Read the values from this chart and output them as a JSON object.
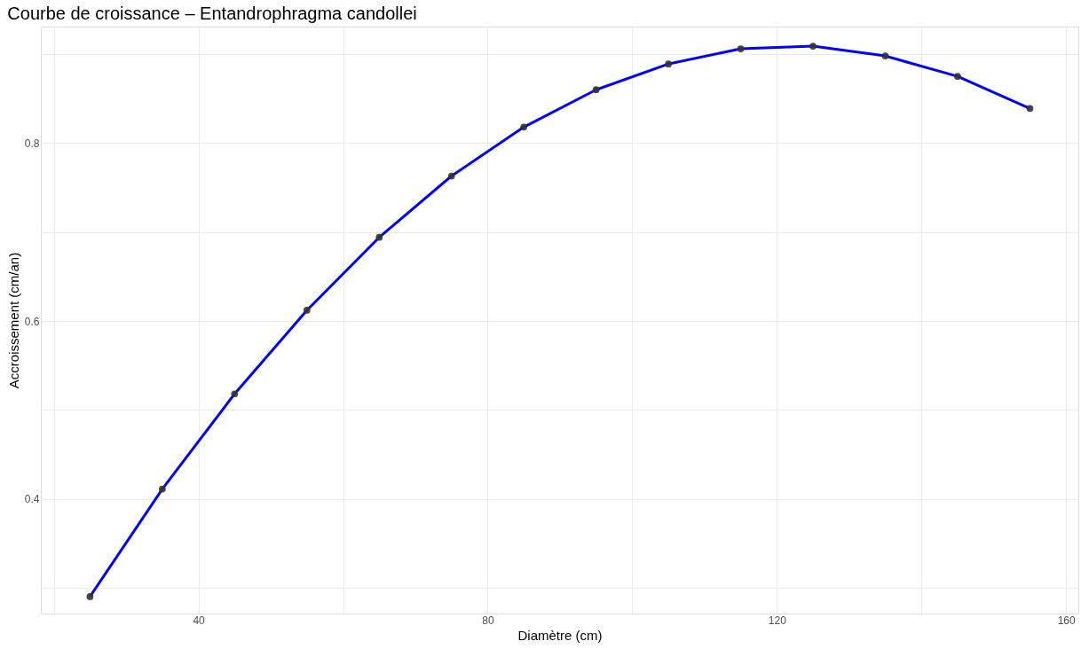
{
  "chart_data": {
    "type": "line",
    "title": "Courbe de croissance – Entandrophragma candollei",
    "xlabel": "Diamètre (cm)",
    "ylabel": "Accroissement (cm/an)",
    "x": [
      25,
      35,
      45,
      55,
      65,
      75,
      85,
      95,
      105,
      115,
      125,
      135,
      145,
      155
    ],
    "series": [
      {
        "color": "#0000ff",
        "values": [
          0.29,
          0.411,
          0.518,
          0.612,
          0.694,
          0.763,
          0.818,
          0.86,
          0.889,
          0.906,
          0.909,
          0.898,
          0.875,
          0.839
        ]
      }
    ],
    "xlim": [
      18.2,
      161.7
    ],
    "ylim": [
      0.271,
      0.931
    ],
    "xticks": [
      {
        "value": 20,
        "label": null
      },
      40,
      {
        "value": 60,
        "label": null
      },
      80,
      {
        "value": 100,
        "label": null
      },
      120,
      {
        "value": 140,
        "label": null
      },
      160
    ],
    "yticks": [
      {
        "value": 0.3,
        "label": null
      },
      0.4,
      {
        "value": 0.5,
        "label": null
      },
      0.6,
      {
        "value": 0.7,
        "label": null
      },
      0.8,
      {
        "value": 0.9,
        "label": null
      }
    ],
    "grid": true,
    "marker": "circle",
    "line_style": "solid"
  }
}
